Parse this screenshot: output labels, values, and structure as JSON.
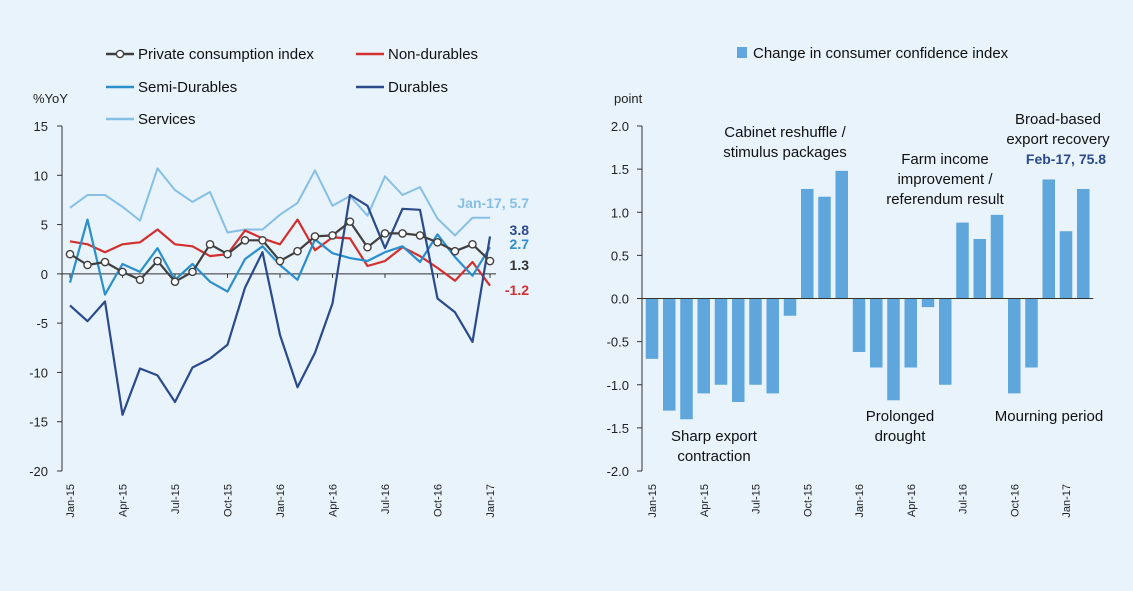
{
  "colors": {
    "background": "#e8f3fb",
    "private": "#404040",
    "nondurables": "#d32f2f",
    "semidurables": "#2b8fcc",
    "durables": "#2b4a8b",
    "services": "#86bfe6",
    "bars": "#5ea6dc"
  },
  "chart_data": [
    {
      "type": "line",
      "unit_label": "%YoY",
      "ylim": [
        -20,
        15
      ],
      "yticks": [
        15,
        10,
        5,
        0,
        -5,
        -10,
        -15,
        -20
      ],
      "x": [
        "Jan-15",
        "Feb-15",
        "Mar-15",
        "Apr-15",
        "May-15",
        "Jun-15",
        "Jul-15",
        "Aug-15",
        "Sep-15",
        "Oct-15",
        "Nov-15",
        "Dec-15",
        "Jan-16",
        "Feb-16",
        "Mar-16",
        "Apr-16",
        "May-16",
        "Jun-16",
        "Jul-16",
        "Aug-16",
        "Sep-16",
        "Oct-16",
        "Nov-16",
        "Dec-16",
        "Jan-17"
      ],
      "xtick_labels": [
        "Jan-15",
        "Apr-15",
        "Jul-15",
        "Oct-15",
        "Jan-16",
        "Apr-16",
        "Jul-16",
        "Oct-16",
        "Jan-17"
      ],
      "series": [
        {
          "key": "services",
          "name": "Services",
          "values": [
            6.7,
            8.0,
            8.0,
            6.8,
            5.4,
            10.7,
            8.5,
            7.3,
            8.3,
            4.2,
            4.5,
            4.5,
            6.0,
            7.2,
            10.5,
            6.9,
            7.9,
            5.9,
            9.9,
            8.0,
            8.8,
            5.6,
            3.9,
            5.7,
            5.7
          ]
        },
        {
          "key": "nondurables",
          "name": "Non-durables",
          "values": [
            3.3,
            3.0,
            2.2,
            3.0,
            3.2,
            4.5,
            3.0,
            2.8,
            1.8,
            2.0,
            4.4,
            3.6,
            3.0,
            5.5,
            2.4,
            3.7,
            3.6,
            0.8,
            1.3,
            2.7,
            1.8,
            0.6,
            -0.7,
            1.2,
            -1.2
          ]
        },
        {
          "key": "semidurables",
          "name": "Semi-Durables",
          "values": [
            -0.9,
            5.5,
            -2.1,
            1.0,
            0.2,
            2.6,
            -0.6,
            1.0,
            -0.8,
            -1.8,
            1.5,
            2.8,
            0.9,
            -0.6,
            3.5,
            2.1,
            1.6,
            1.3,
            2.2,
            2.8,
            1.2,
            4.0,
            1.7,
            -0.2,
            2.7
          ]
        },
        {
          "key": "durables",
          "name": "Durables",
          "values": [
            -3.2,
            -4.8,
            -2.8,
            -14.3,
            -9.6,
            -10.3,
            -13.0,
            -9.5,
            -8.6,
            -7.2,
            -1.4,
            2.2,
            -6.2,
            -11.5,
            -8.0,
            -3.0,
            8.0,
            6.9,
            2.6,
            6.6,
            6.5,
            -2.5,
            -3.9,
            -6.9,
            3.8
          ]
        },
        {
          "key": "private",
          "name": "Private consumption index",
          "values": [
            2.0,
            0.9,
            1.2,
            0.2,
            -0.6,
            1.3,
            -0.8,
            0.2,
            3.0,
            2.0,
            3.4,
            3.4,
            1.3,
            2.3,
            3.8,
            3.9,
            5.3,
            2.7,
            4.1,
            4.1,
            3.9,
            3.2,
            2.3,
            3.0,
            1.3
          ]
        }
      ],
      "legend": [
        {
          "key": "private",
          "label": "Private consumption index"
        },
        {
          "key": "nondurables",
          "label": "Non-durables"
        },
        {
          "key": "semidurables",
          "label": "Semi-Durables"
        },
        {
          "key": "durables",
          "label": "Durables"
        },
        {
          "key": "services",
          "label": "Services"
        }
      ],
      "annotations": {
        "services_last": "Jan-17, 5.7",
        "durables_last": "3.8",
        "semidurables_last": "2.7",
        "private_last": "1.3",
        "nondurables_last": "-1.2"
      }
    },
    {
      "type": "bar",
      "title": "Change in consumer confidence index",
      "unit_label": "point",
      "ylim": [
        -2.0,
        2.0
      ],
      "yticks": [
        "2.0",
        "1.5",
        "1.0",
        "0.5",
        "0.0",
        "-0.5",
        "-1.0",
        "-1.5",
        "-2.0"
      ],
      "categories": [
        "Jan-15",
        "Feb-15",
        "Mar-15",
        "Apr-15",
        "May-15",
        "Jun-15",
        "Jul-15",
        "Aug-15",
        "Sep-15",
        "Oct-15",
        "Nov-15",
        "Dec-15",
        "Jan-16",
        "Feb-16",
        "Mar-16",
        "Apr-16",
        "May-16",
        "Jun-16",
        "Jul-16",
        "Aug-16",
        "Sep-16",
        "Oct-16",
        "Nov-16",
        "Dec-16",
        "Jan-17",
        "Feb-17"
      ],
      "values": [
        -0.7,
        -1.3,
        -1.4,
        -1.1,
        -1.0,
        -1.2,
        -1.0,
        -1.1,
        -0.2,
        1.27,
        1.18,
        1.48,
        -0.62,
        -0.8,
        -1.18,
        -0.8,
        -0.1,
        -1.0,
        0.88,
        0.69,
        0.97,
        -1.1,
        -0.8,
        1.38,
        0.78,
        1.27
      ],
      "xtick_labels": [
        "Jan-15",
        "Apr-15",
        "Jul-15",
        "Oct-15",
        "Jan-16",
        "Apr-16",
        "Jul-16",
        "Oct-16",
        "Jan-17"
      ],
      "annotations": [
        {
          "lines": [
            "Sharp export",
            "contraction"
          ]
        },
        {
          "lines": [
            "Cabinet reshuffle /",
            "stimulus packages"
          ]
        },
        {
          "lines": [
            "Prolonged",
            "drought"
          ]
        },
        {
          "lines": [
            "Farm income",
            "improvement /",
            "referendum result"
          ]
        },
        {
          "lines": [
            "Mourning period"
          ]
        },
        {
          "lines": [
            "Broad-based",
            "export recovery"
          ]
        }
      ],
      "highlight_label": "Feb-17, 75.8"
    }
  ]
}
